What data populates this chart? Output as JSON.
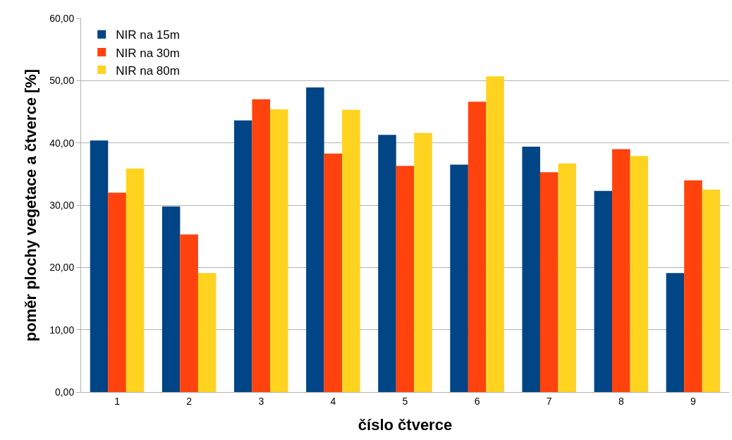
{
  "chart_data": {
    "type": "bar",
    "xlabel": "číslo čtverce",
    "ylabel": "poměr plochy vegetace a čtverce [%]",
    "categories": [
      "1",
      "2",
      "3",
      "4",
      "5",
      "6",
      "7",
      "8",
      "9"
    ],
    "series": [
      {
        "name": "NIR na 15m",
        "color": "#004586",
        "values": [
          40.4,
          29.8,
          43.6,
          48.9,
          41.3,
          36.5,
          39.4,
          32.3,
          19.1
        ]
      },
      {
        "name": "NIR na 30m",
        "color": "#ff420e",
        "values": [
          32.0,
          25.3,
          47.0,
          38.3,
          36.3,
          46.6,
          35.3,
          39.0,
          34.0
        ]
      },
      {
        "name": "NIR na 80m",
        "color": "#ffd320",
        "values": [
          35.9,
          19.1,
          45.4,
          45.3,
          41.6,
          50.7,
          36.7,
          37.9,
          32.5
        ]
      }
    ],
    "ylim": [
      0,
      60
    ],
    "yticks": [
      {
        "value": 0,
        "label": "0,00"
      },
      {
        "value": 10,
        "label": "10,00"
      },
      {
        "value": 20,
        "label": "20,00"
      },
      {
        "value": 30,
        "label": "30,00"
      },
      {
        "value": 40,
        "label": "40,00"
      },
      {
        "value": 50,
        "label": "50,00"
      },
      {
        "value": 60,
        "label": "60,00"
      }
    ],
    "grid": "y",
    "legend": "top left"
  }
}
